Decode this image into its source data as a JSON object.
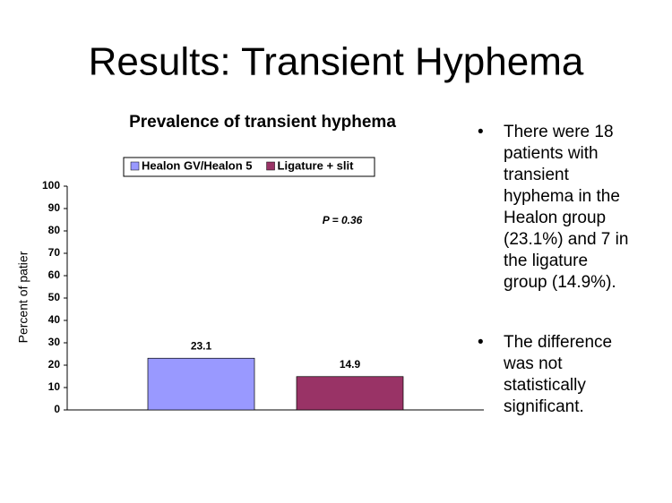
{
  "title": "Results: Transient Hyphema",
  "chart_data": {
    "type": "bar",
    "title": "Prevalence of transient hyphema",
    "ylabel": "Percent of patier",
    "categories": [
      null
    ],
    "series": [
      {
        "name": "Healon GV/Healon 5",
        "color": "#9999ff",
        "values": [
          23.1
        ]
      },
      {
        "name": "Ligature + slit",
        "color": "#993366",
        "values": [
          14.9
        ]
      }
    ],
    "ylim": [
      0,
      100
    ],
    "yticks": [
      0,
      10,
      20,
      30,
      40,
      50,
      60,
      70,
      80,
      90,
      100
    ],
    "grid": false,
    "legend": "top",
    "annotation": "P = 0.36"
  },
  "bullets": [
    "There were 18 patients with transient hyphema in the Healon group (23.1%)  and 7 in the ligature group (14.9%).",
    "The difference was not statistically significant."
  ]
}
